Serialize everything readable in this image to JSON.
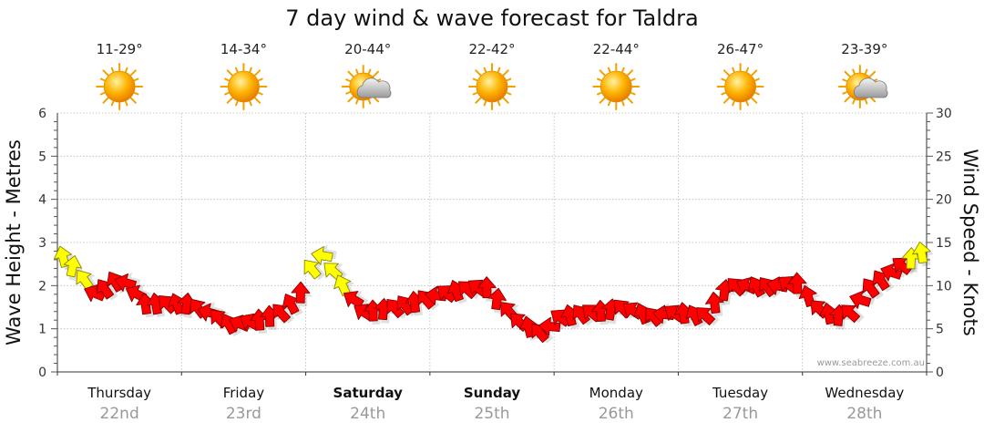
{
  "chart_data": {
    "type": "line",
    "title": "7 day wind & wave forecast for Taldra",
    "ylabel_left": "Wave Height - Metres",
    "ylabel_right": "Wind Speed - Knots",
    "ylim_left": [
      0,
      6
    ],
    "ylim_right": [
      0,
      30
    ],
    "yticks_left": [
      "0",
      "1",
      "2",
      "3",
      "4",
      "5",
      "6"
    ],
    "yticks_right": [
      "0",
      "5",
      "10",
      "15",
      "20",
      "25",
      "30"
    ],
    "days": [
      {
        "name": "Thursday",
        "date": "22nd",
        "temp": "11-29°",
        "weather": "sunny",
        "bold": false
      },
      {
        "name": "Friday",
        "date": "23rd",
        "temp": "14-34°",
        "weather": "sunny",
        "bold": false
      },
      {
        "name": "Saturday",
        "date": "24th",
        "temp": "20-44°",
        "weather": "partly-cloudy",
        "bold": true
      },
      {
        "name": "Sunday",
        "date": "25th",
        "temp": "22-42°",
        "weather": "sunny",
        "bold": true
      },
      {
        "name": "Monday",
        "date": "26th",
        "temp": "22-44°",
        "weather": "sunny",
        "bold": false
      },
      {
        "name": "Tuesday",
        "date": "27th",
        "temp": "26-47°",
        "weather": "sunny",
        "bold": false
      },
      {
        "name": "Wednesday",
        "date": "28th",
        "temp": "23-39°",
        "weather": "partly-cloudy",
        "bold": false
      }
    ],
    "series": [
      {
        "name": "Wind Speed (knots)",
        "x_days": [
          0.0,
          0.15,
          0.3,
          0.5,
          0.7,
          0.9,
          1.05,
          1.2,
          1.4,
          1.6,
          1.8,
          1.95,
          2.1,
          2.25,
          2.45,
          2.7,
          2.95,
          3.2,
          3.45,
          3.7,
          3.9,
          4.05,
          4.3,
          4.55,
          4.8,
          5.0,
          5.2,
          5.4,
          5.6,
          5.8,
          5.95,
          6.15,
          6.35,
          6.55,
          6.75,
          6.95,
          7.0
        ],
        "knots": [
          14,
          12,
          9,
          11,
          8,
          8,
          8,
          7,
          5.5,
          6,
          7,
          9,
          14,
          11,
          7,
          7.5,
          8.5,
          9.5,
          10,
          6,
          4.5,
          6.5,
          7,
          7.5,
          6.5,
          7,
          6.5,
          10,
          10,
          10,
          10.5,
          7,
          6.5,
          10,
          12,
          14,
          13.5
        ],
        "colors": [
          "yellow",
          "yellow",
          "red",
          "red",
          "red",
          "red",
          "red",
          "red",
          "red",
          "red",
          "red",
          "red",
          "yellow",
          "yellow",
          "red",
          "red",
          "red",
          "red",
          "red",
          "red",
          "red",
          "red",
          "red",
          "red",
          "red",
          "red",
          "red",
          "red",
          "red",
          "red",
          "red",
          "red",
          "red",
          "red",
          "red",
          "yellow",
          "yellow"
        ]
      }
    ],
    "credit": "www.seabreeze.com.au",
    "colors": {
      "light": "#ff0000",
      "strong": "#ffff00",
      "outline": "#880000",
      "date": "#999999"
    }
  }
}
